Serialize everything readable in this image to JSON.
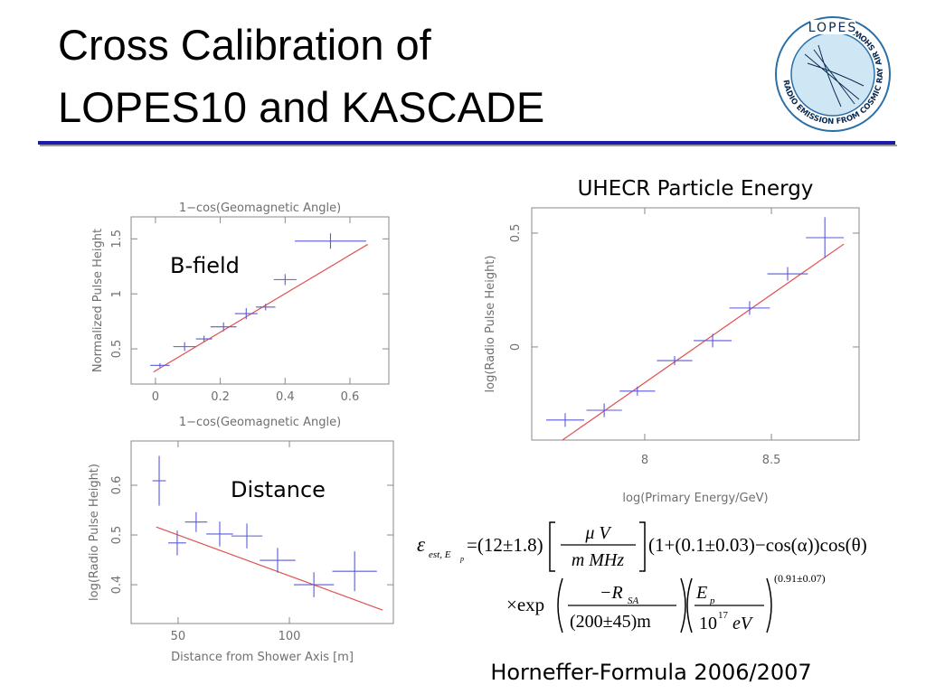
{
  "title_lines": [
    "Cross Calibration of",
    "LOPES10 and KASCADE"
  ],
  "logo": {
    "name": "LOPES",
    "ring": "RADIO EMISSION FROM COSMIC RAY AIR SHOWERS"
  },
  "footer": "Horneffer-Formula 2006/2007",
  "formula": [
    "ε",
    "est, E",
    "p",
    "=(12±1.8)",
    "μ V",
    "m MHz",
    "(1+(0.1±0.03)−cos(α))cos(θ)",
    "×exp",
    "−R",
    "SA",
    "(200±45)m",
    "E",
    "p",
    "10",
    "17",
    "eV",
    "(0.91±0.07)"
  ],
  "chart_data": [
    {
      "type": "errorbar",
      "title": "1−cos(Geomagnetic Angle)",
      "x_label": "1−cos(Geomagnetic Angle)",
      "y_label": "Normalized Pulse Height",
      "annotation": "B-field",
      "color": "#5a5ad8",
      "x": [
        0.014,
        0.09,
        0.15,
        0.21,
        0.28,
        0.34,
        0.4,
        0.54
      ],
      "values": [
        0.35,
        0.52,
        0.59,
        0.7,
        0.82,
        0.88,
        1.13,
        1.48
      ],
      "xerr": [
        0.03,
        0.035,
        0.025,
        0.04,
        0.035,
        0.03,
        0.035,
        0.11
      ],
      "yerr": [
        0.02,
        0.04,
        0.03,
        0.04,
        0.05,
        0.03,
        0.05,
        0.07
      ],
      "fit": {
        "color": "#e05050",
        "x": [
          -0.006,
          0.655
        ],
        "y": [
          0.29,
          1.45
        ]
      },
      "xlim": [
        -0.075,
        0.72
      ],
      "ylim": [
        0.18,
        1.7
      ],
      "xticks": [
        0,
        0.2,
        0.4,
        0.6
      ],
      "yticks": [
        0.5,
        1,
        1.5
      ]
    },
    {
      "type": "errorbar",
      "x_label": "Distance from Shower Axis [m]",
      "y_label": "log(Radio Pulse Height)",
      "annotation": "Distance",
      "color": "#5a5ad8",
      "x": [
        41.5,
        49.6,
        58.1,
        68.7,
        80.9,
        94.7,
        111,
        129.3
      ],
      "values": [
        0.609,
        0.484,
        0.526,
        0.502,
        0.498,
        0.449,
        0.4,
        0.427
      ],
      "xerr": [
        3,
        4,
        5,
        6,
        7,
        8,
        9,
        10
      ],
      "yerr": [
        0.05,
        0.025,
        0.02,
        0.025,
        0.025,
        0.025,
        0.025,
        0.04
      ],
      "fit": {
        "color": "#e05050",
        "x": [
          40.2,
          141.9
        ],
        "y": [
          0.516,
          0.349
        ]
      },
      "xlim": [
        28.9,
        146.7
      ],
      "ylim": [
        0.322,
        0.689
      ],
      "xticks": [
        50,
        100
      ],
      "yticks": [
        0.4,
        0.5,
        0.6
      ]
    },
    {
      "type": "errorbar",
      "title": "UHECR Particle Energy",
      "x_label": "log(Primary Energy/GeV)",
      "y_label": "log(Radio Pulse Height)",
      "color": "#5a5ad8",
      "x": [
        7.686,
        7.84,
        7.971,
        8.118,
        8.268,
        8.414,
        8.564,
        8.711
      ],
      "values": [
        -0.321,
        -0.278,
        -0.194,
        -0.06,
        0.028,
        0.171,
        0.321,
        0.48
      ],
      "xerr": [
        0.075,
        0.07,
        0.07,
        0.07,
        0.075,
        0.08,
        0.08,
        0.075
      ],
      "yerr": [
        0.03,
        0.03,
        0.02,
        0.02,
        0.03,
        0.03,
        0.03,
        0.09
      ],
      "fit": {
        "color": "#e05050",
        "x": [
          7.675,
          8.786
        ],
        "y": [
          -0.409,
          0.452
        ]
      },
      "xlim": [
        7.554,
        8.846
      ],
      "ylim": [
        -0.409,
        0.611
      ],
      "xticks": [
        8,
        8.5
      ],
      "yticks": [
        0,
        0.5
      ]
    }
  ]
}
